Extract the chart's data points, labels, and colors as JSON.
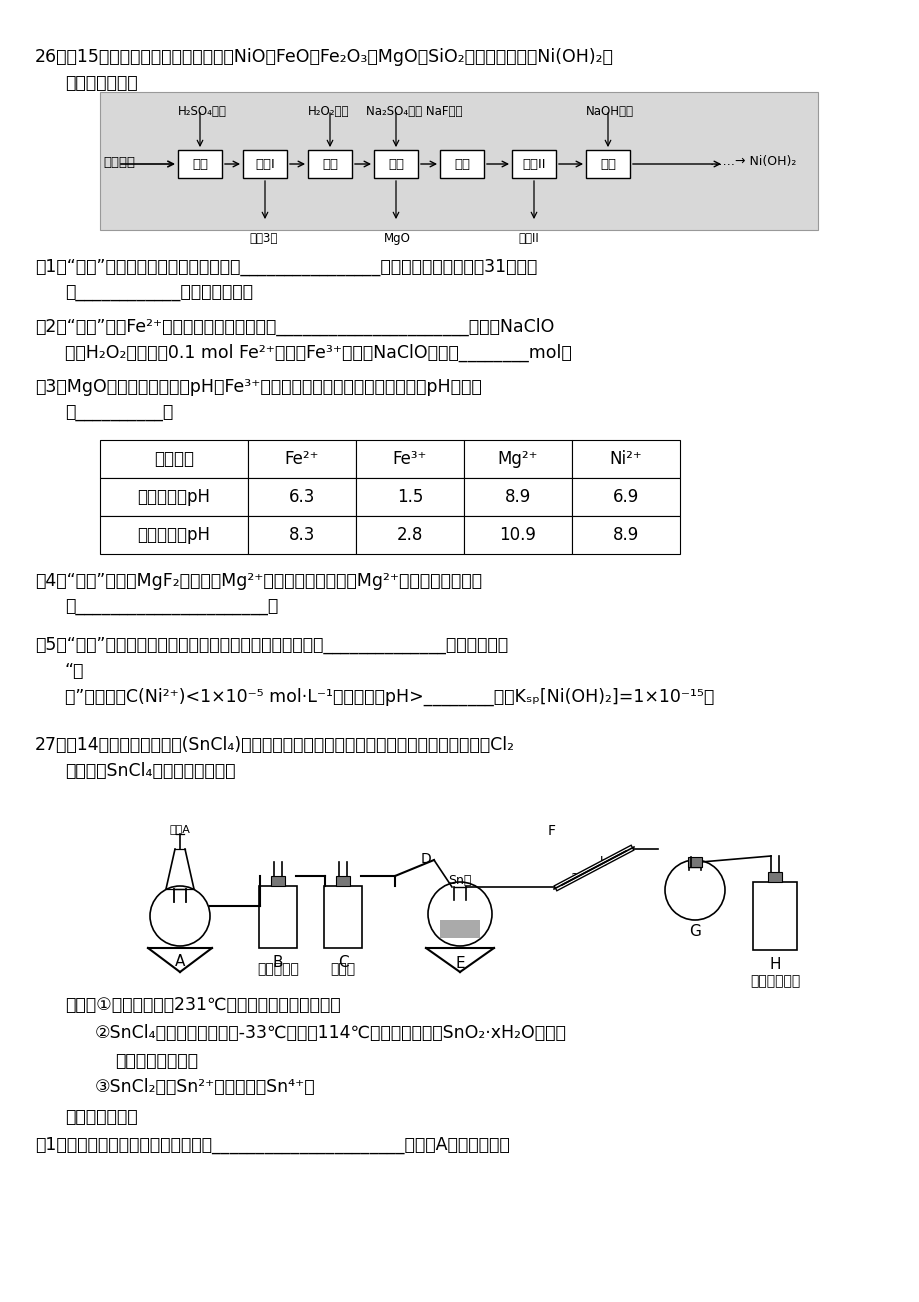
{
  "bg_color": "#ffffff",
  "page_width": 9.2,
  "page_height": 13.02,
  "q26_line1": "26．（15分）以红土镁矿（主要成分为NiO、FeO、Fe₂O₃、MgO和SiO₂等）为原料制备Ni(OH)₂的",
  "q26_line2": "工艺流程如图：",
  "flow_items": [
    "酸浸",
    "过滤I",
    "氧化",
    "沉铁",
    "沉镁",
    "过滤II",
    "沉镁"
  ],
  "flow_left": "红土镁矿",
  "flow_right": "……→ Ni(OH)₂",
  "top_label_0": "H₂SO₄溶液",
  "top_label_2": "H₂O₂溶液",
  "top_label_3a": "Na₂SO₄溶液 NaF溶液",
  "top_label_6": "NaOH溶液",
  "bot_label_1": "滤渤3１",
  "bot_label_3": "MgO",
  "bot_label_5": "滤液II",
  "q1_line1": "（1）“酸浸”时，加快化学反应速率的措施________________（写一条即可）。滤渤31的成分",
  "q1_line2": "为____________（填化学式）。",
  "q2_line1": "（2）“氧化”时，Fe²⁺发生反应的离子方程式为______________________，若用NaClO",
  "q2_line2": "代替H₂O₂溶液，䁱0.1 mol Fe²⁺转化为Fe³⁺，则需NaClO至少为________mol。",
  "q3_line1": "（3）MgO的作用是调节溶液pH使Fe³⁺沉淀，根据下表的数据，则调节溶液pH的范围",
  "q3_line2": "是__________。",
  "table_headers": [
    "金属离子",
    "Fe²⁺",
    "Fe³⁺",
    "Mg²⁺",
    "Ni²⁺"
  ],
  "table_row1": [
    "开始沉淀的pH",
    "6.3",
    "1.5",
    "8.9",
    "6.9"
  ],
  "table_row2": [
    "沉淀完全的pH",
    "8.3",
    "2.8",
    "10.9",
    "8.9"
  ],
  "q4_line1": "（4）“沉镁”是生成MgF₂沉淀除去Mg²⁺。若溶液酸度过高，Mg²⁺沉淀不完全，原因",
  "q4_line2": "是______________________。",
  "q5_line1": "（5）“沉镁”后需过滤、洗洤，证明沉淀已洗洤干净的方法是______________。室温时，若",
  "q5_line2": "“沉",
  "q5_line3": "镁”后的滤液C(Ni²⁺)<1×10⁻⁵ mol·L⁻¹，则滤液中pH>________。（Kₛₚ[Ni(OH)₂]=1×10⁻¹⁵）",
  "q27_line1": "27．（14分）无水四氯化锡(SnCl₄)常用作有机合成的氯化催化剑。实验室可用燕融的锡与Cl₂",
  "q27_line2": "反应制备SnCl₄，装置如图所示。",
  "known1": "已知：①金属锡燕点为231℃，化学活泼性与铁相似。",
  "known2": "②SnCl₄为无色液体，燕点-33℃，沸点114℃，极易水解生成SnO₂·xH₂O，在潮",
  "known2b": "湿的空气中发烟。",
  "known3": "③SnCl₂中的Sn²⁺易被氧化为Sn⁴⁺。",
  "q27_ans": "回答下列问题：",
  "q27_q1": "（1）打开分液漏斗上端活塞的作用是______________________，装置A中发生反应的"
}
